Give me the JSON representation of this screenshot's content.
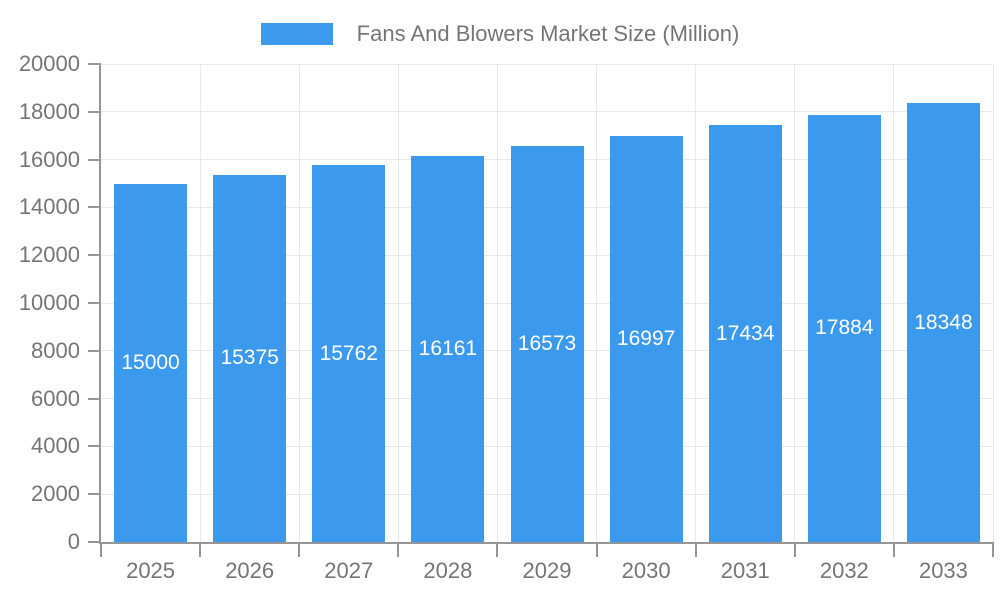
{
  "legend": {
    "label": "Fans And Blowers Market Size (Million)"
  },
  "chart_data": {
    "type": "bar",
    "title": "Fans And Blowers Market Size (Million)",
    "categories": [
      "2025",
      "2026",
      "2027",
      "2028",
      "2029",
      "2030",
      "2031",
      "2032",
      "2033"
    ],
    "values": [
      15000,
      15375,
      15762,
      16161,
      16573,
      16997,
      17434,
      17884,
      18348
    ],
    "xlabel": "",
    "ylabel": "",
    "ylim": [
      0,
      20000
    ],
    "ytick_step": 2000,
    "yticks": [
      0,
      2000,
      4000,
      6000,
      8000,
      10000,
      12000,
      14000,
      16000,
      18000,
      20000
    ],
    "grid": true,
    "legend_position": "top-center",
    "value_labels": "inside-center",
    "bar_color": "#3B99EE"
  },
  "colors": {
    "bar": "#3B99EE",
    "gridline": "#e8e8e8",
    "axis": "#969696",
    "text": "#757575",
    "value_label": "#ffffff",
    "background": "#ffffff"
  }
}
